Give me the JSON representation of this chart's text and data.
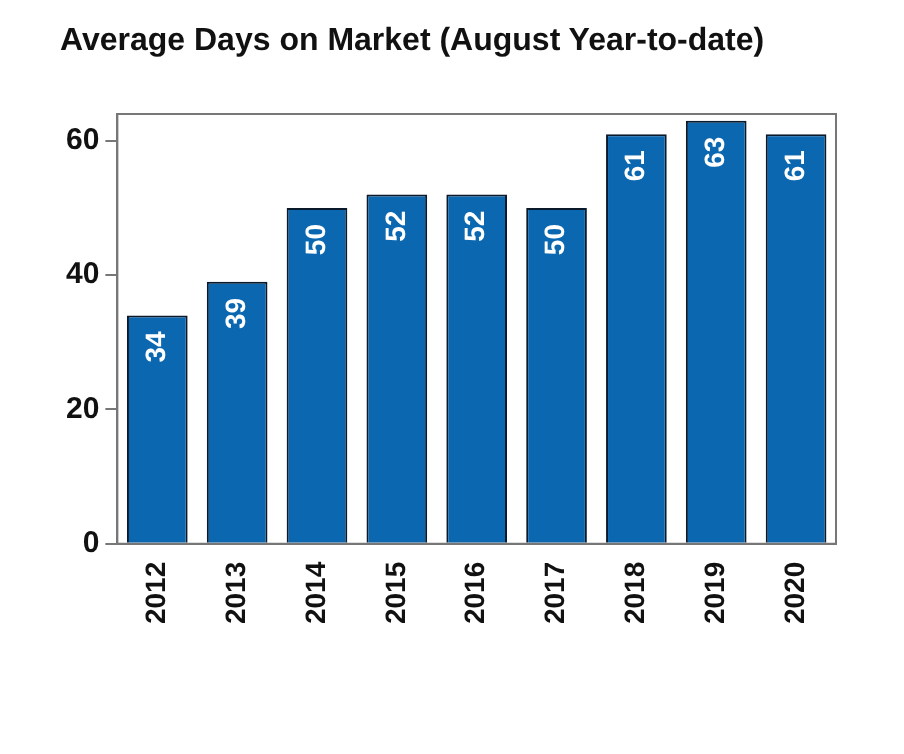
{
  "chart_data": {
    "type": "bar",
    "title": "Average Days on Market (August Year-to-date)",
    "categories": [
      "2012",
      "2013",
      "2014",
      "2015",
      "2016",
      "2017",
      "2018",
      "2019",
      "2020"
    ],
    "values": [
      34,
      39,
      50,
      52,
      52,
      50,
      61,
      63,
      61
    ],
    "color": "#0a67b0",
    "ylim": [
      0,
      64
    ],
    "yticks": [
      0,
      20,
      40,
      60
    ],
    "grid": false,
    "data_labels": true,
    "legend": false
  }
}
